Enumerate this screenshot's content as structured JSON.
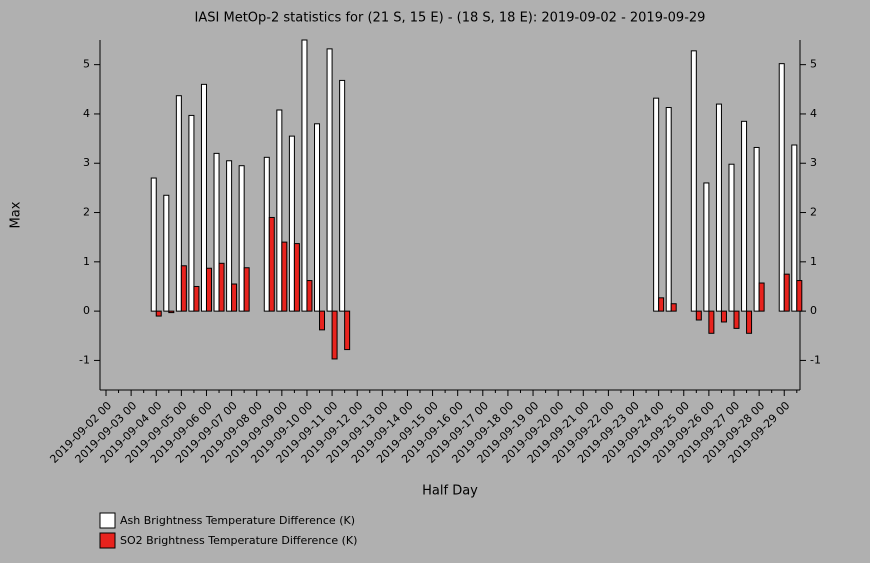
{
  "chart_data": {
    "type": "bar",
    "title": "IASI MetOp-2 statistics for (21 S, 15 E) - (18 S, 18 E): 2019-09-02 - 2019-09-29",
    "x_label": "Half Day",
    "y_label": "Max",
    "categories": [
      "2019-09-02 00",
      null,
      "2019-09-03 00",
      null,
      "2019-09-04 00",
      null,
      "2019-09-05 00",
      null,
      "2019-09-06 00",
      null,
      "2019-09-07 00",
      null,
      "2019-09-08 00",
      null,
      "2019-09-09 00",
      null,
      "2019-09-10 00",
      null,
      "2019-09-11 00",
      null,
      "2019-09-12 00",
      null,
      "2019-09-13 00",
      null,
      "2019-09-14 00",
      null,
      "2019-09-15 00",
      null,
      "2019-09-16 00",
      null,
      "2019-09-17 00",
      null,
      "2019-09-18 00",
      null,
      "2019-09-19 00",
      null,
      "2019-09-20 00",
      null,
      "2019-09-21 00",
      null,
      "2019-09-22 00",
      null,
      "2019-09-23 00",
      null,
      "2019-09-24 00",
      null,
      "2019-09-25 00",
      null,
      "2019-09-26 00",
      null,
      "2019-09-27 00",
      null,
      "2019-09-28 00",
      null,
      "2019-09-29 00",
      null
    ],
    "series": [
      {
        "name": "Ash Brightness Temperature Difference (K)",
        "color": "#ffffff",
        "values": [
          null,
          null,
          null,
          null,
          2.7,
          2.35,
          4.37,
          3.97,
          4.6,
          3.2,
          3.05,
          2.95,
          null,
          3.12,
          4.08,
          3.55,
          5.5,
          3.8,
          5.32,
          4.68,
          null,
          null,
          null,
          null,
          null,
          null,
          null,
          null,
          null,
          null,
          null,
          null,
          null,
          null,
          null,
          null,
          null,
          null,
          null,
          null,
          null,
          null,
          null,
          null,
          4.32,
          4.13,
          null,
          5.28,
          2.6,
          4.2,
          2.98,
          3.85,
          3.32,
          null,
          5.02,
          3.37
        ]
      },
      {
        "name": "SO2 Brightness Temperature Difference (K)",
        "color": "#e8231e",
        "values": [
          null,
          null,
          null,
          null,
          -0.1,
          -0.03,
          0.92,
          0.5,
          0.87,
          0.97,
          0.55,
          0.88,
          null,
          1.9,
          1.4,
          1.37,
          0.62,
          -0.38,
          -0.97,
          -0.78,
          null,
          null,
          null,
          null,
          null,
          null,
          null,
          null,
          null,
          null,
          null,
          null,
          null,
          null,
          null,
          null,
          null,
          null,
          null,
          null,
          null,
          null,
          null,
          null,
          0.27,
          0.15,
          null,
          -0.18,
          -0.45,
          -0.22,
          -0.35,
          -0.45,
          0.57,
          null,
          0.75,
          0.62
        ]
      }
    ],
    "ylim": [
      -1.6,
      5.5
    ],
    "yticks": [
      -1,
      0,
      1,
      2,
      3,
      4,
      5
    ],
    "y2lim": [
      -1.6,
      5.5
    ],
    "y2ticks": [
      -1,
      0,
      1,
      2,
      3,
      4,
      5
    ],
    "legend": "bottom-left"
  }
}
